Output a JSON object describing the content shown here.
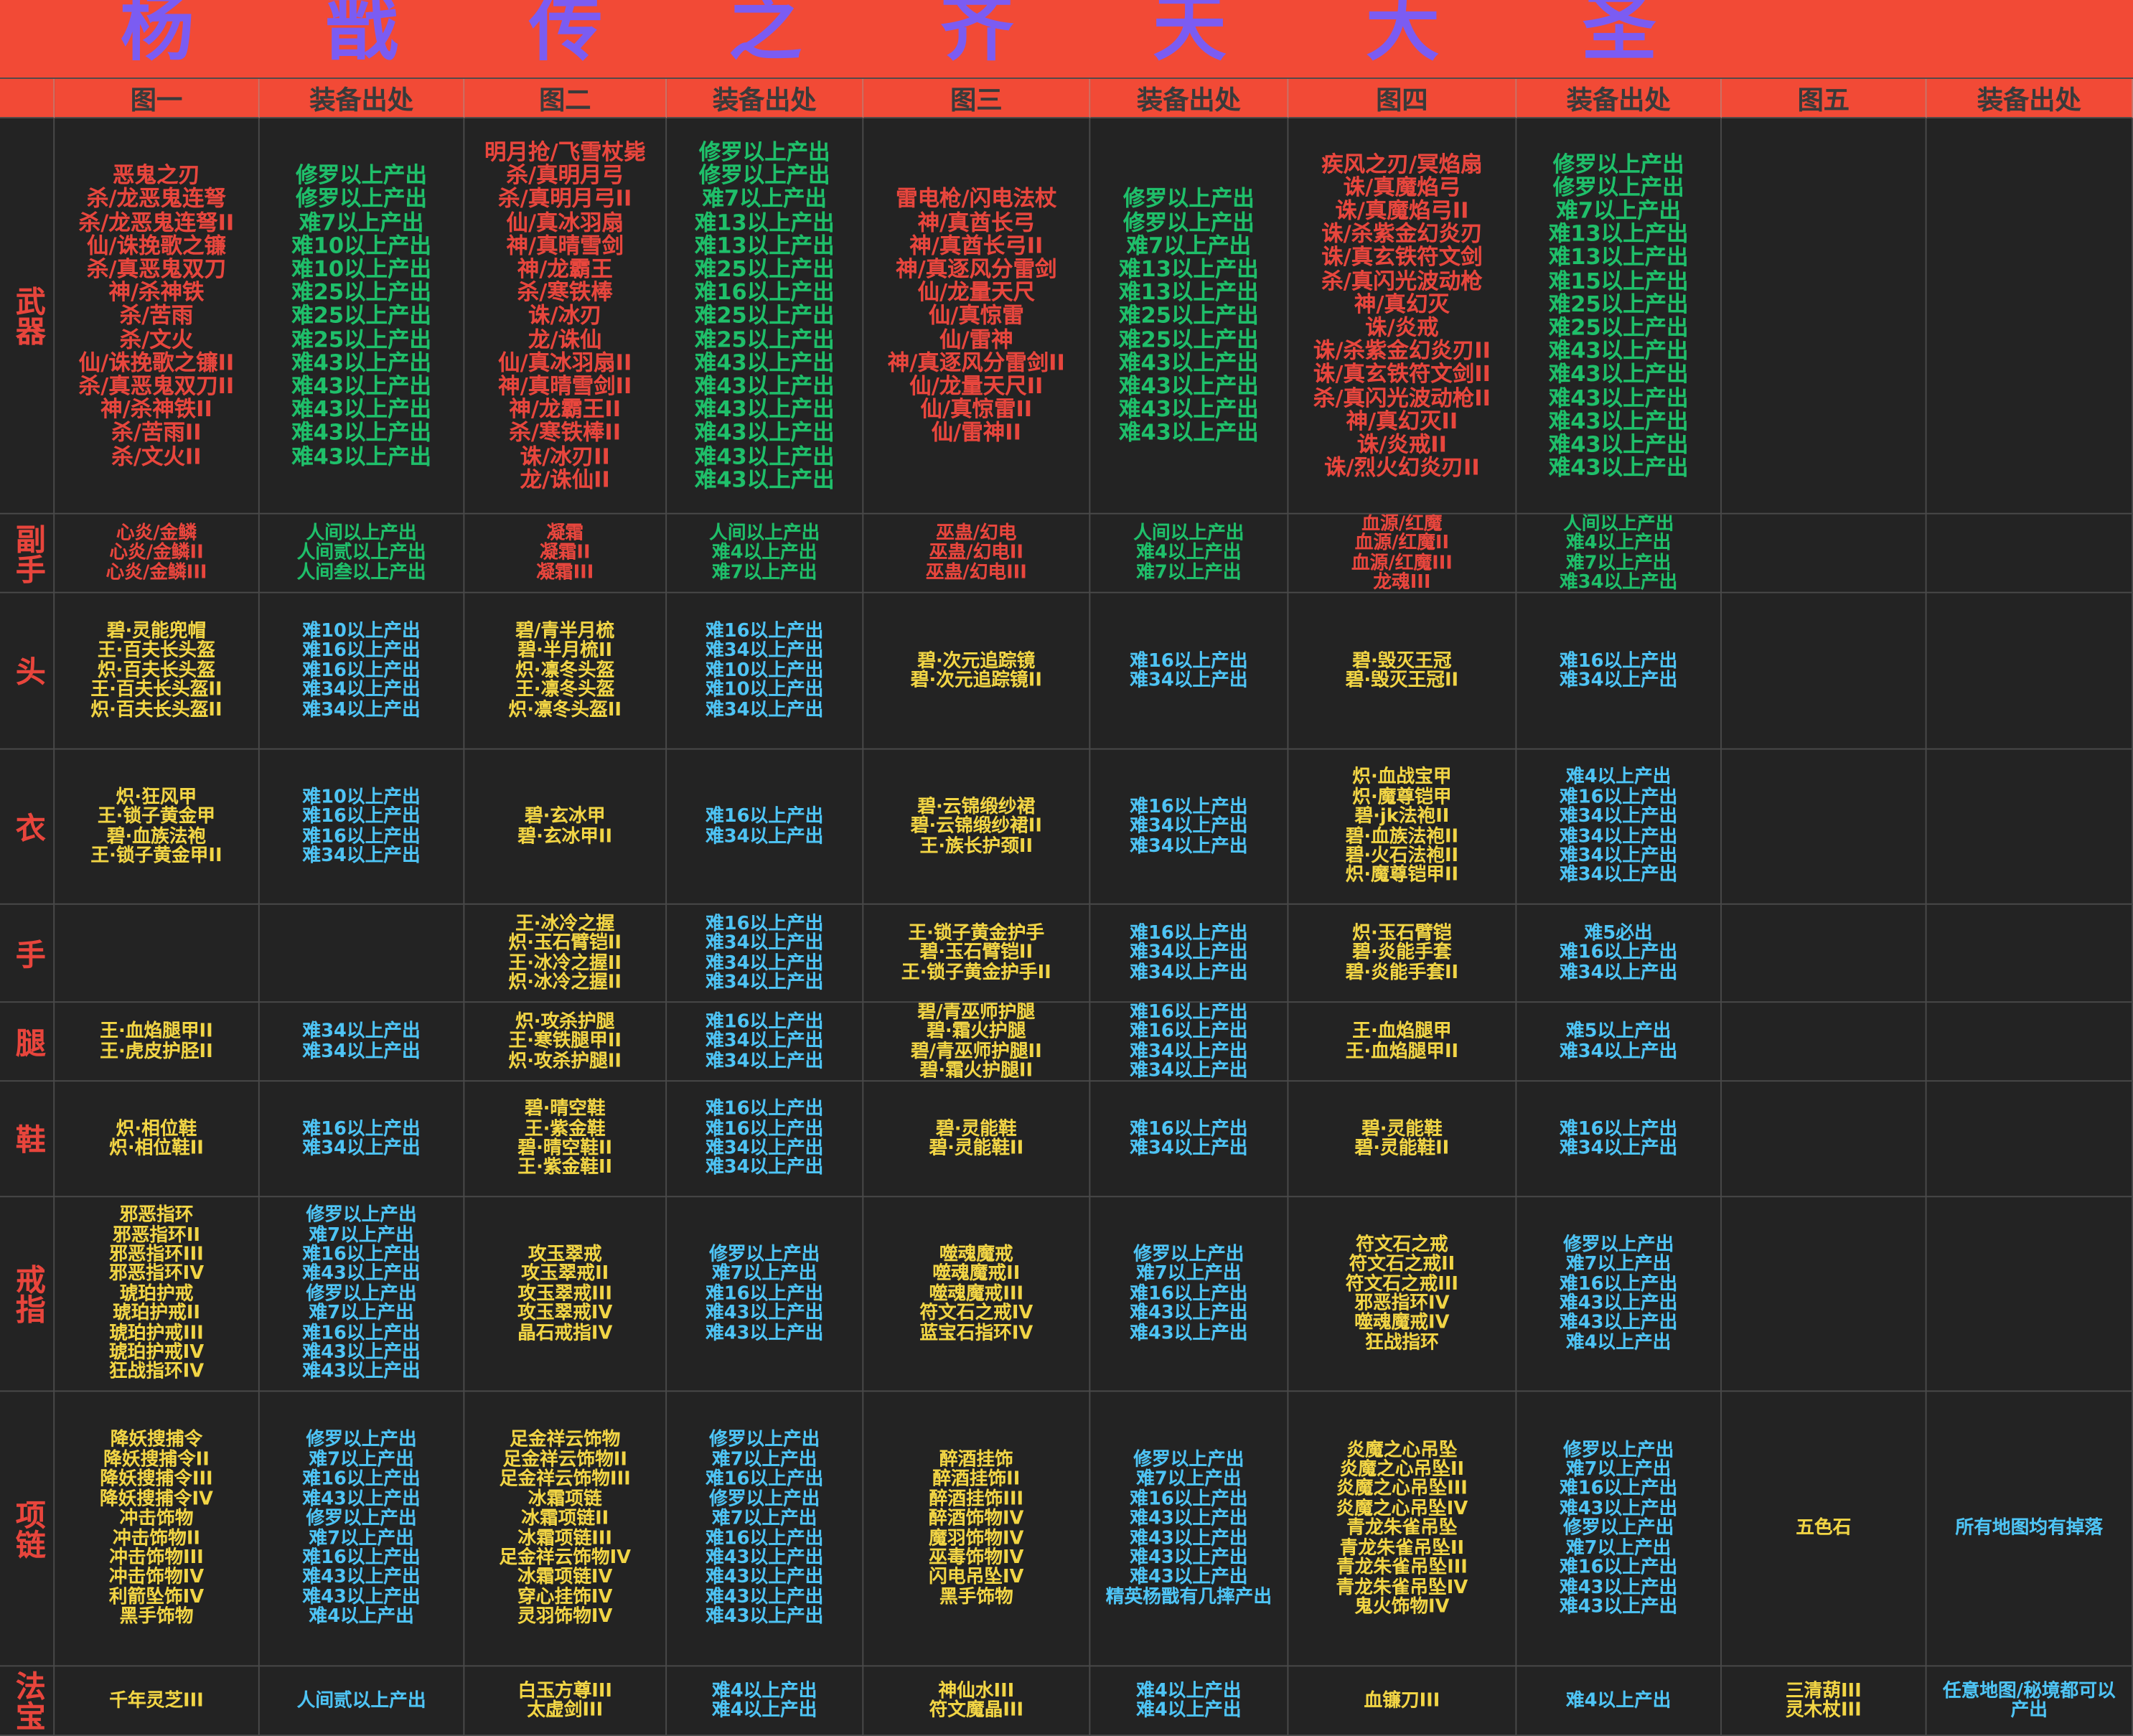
{
  "title": [
    "杨",
    "戬",
    "传",
    "之",
    "齐",
    "天",
    "大",
    "圣"
  ],
  "header": [
    "图一",
    "装备出处",
    "图二",
    "装备出处",
    "图三",
    "装备出处",
    "图四",
    "装备出处",
    "图五",
    "装备出处"
  ],
  "rows": [
    {
      "label": "武器",
      "cells": [
        [
          "恶鬼之刃",
          "杀/龙恶鬼连弩",
          "杀/龙恶鬼连弩II",
          "仙/诛挽歌之镰",
          "杀/真恶鬼双刀",
          "神/杀神铁",
          "杀/苦雨",
          "杀/文火",
          "仙/诛挽歌之镰II",
          "杀/真恶鬼双刀II",
          "神/杀神铁II",
          "杀/苦雨II",
          "杀/文火II"
        ],
        [
          "修罗以上产出",
          "修罗以上产出",
          "难7以上产出",
          "难10以上产出",
          "难10以上产出",
          "难25以上产出",
          "难25以上产出",
          "难25以上产出",
          "难43以上产出",
          "难43以上产出",
          "难43以上产出",
          "难43以上产出",
          "难43以上产出"
        ],
        [
          "明月抢/飞雪杖毙",
          "杀/真明月弓",
          "杀/真明月弓II",
          "仙/真冰羽扇",
          "神/真晴雪剑",
          "神/龙霸王",
          "杀/寒铁棒",
          "诛/冰刃",
          "龙/诛仙",
          "仙/真冰羽扇II",
          "神/真晴雪剑II",
          "神/龙霸王II",
          "杀/寒铁棒II",
          "诛/冰刃II",
          "龙/诛仙II"
        ],
        [
          "修罗以上产出",
          "修罗以上产出",
          "难7以上产出",
          "难13以上产出",
          "难13以上产出",
          "难25以上产出",
          "难16以上产出",
          "难25以上产出",
          "难25以上产出",
          "难43以上产出",
          "难43以上产出",
          "难43以上产出",
          "难43以上产出",
          "难43以上产出",
          "难43以上产出"
        ],
        [
          "雷电枪/闪电法杖",
          "神/真酋长弓",
          "神/真酋长弓II",
          "神/真逐风分雷剑",
          "仙/龙量天尺",
          "仙/真惊雷",
          "仙/雷神",
          "神/真逐风分雷剑II",
          "仙/龙量天尺II",
          "仙/真惊雷II",
          "仙/雷神II"
        ],
        [
          "修罗以上产出",
          "修罗以上产出",
          "难7以上产出",
          "难13以上产出",
          "难13以上产出",
          "难25以上产出",
          "难25以上产出",
          "难43以上产出",
          "难43以上产出",
          "难43以上产出",
          "难43以上产出"
        ],
        [
          "疾风之刃/冥焰扇",
          "诛/真魔焰弓",
          "诛/真魔焰弓II",
          "诛/杀紫金幻炎刃",
          "诛/真玄铁符文剑",
          "杀/真闪光波动枪",
          "神/真幻灭",
          "诛/炎戒",
          "诛/杀紫金幻炎刃II",
          "诛/真玄铁符文剑II",
          "杀/真闪光波动枪II",
          "神/真幻灭II",
          "诛/炎戒II",
          "诛/烈火幻炎刃II"
        ],
        [
          "修罗以上产出",
          "修罗以上产出",
          "难7以上产出",
          "难13以上产出",
          "难13以上产出",
          "难15以上产出",
          "难25以上产出",
          "难25以上产出",
          "难43以上产出",
          "难43以上产出",
          "难43以上产出",
          "难43以上产出",
          "难43以上产出",
          "难43以上产出"
        ],
        [],
        []
      ]
    },
    {
      "label": "副手",
      "cells": [
        [
          "心炎/金鳞",
          "心炎/金鳞II",
          "心炎/金鳞III"
        ],
        [
          "人间以上产出",
          "人间贰以上产出",
          "人间叁以上产出"
        ],
        [
          "凝霜",
          "凝霜II",
          "凝霜III"
        ],
        [
          "人间以上产出",
          "难4以上产出",
          "难7以上产出"
        ],
        [
          "巫蛊/幻电",
          "巫蛊/幻电II",
          "巫蛊/幻电III"
        ],
        [
          "人间以上产出",
          "难4以上产出",
          "难7以上产出"
        ],
        [
          "血源/红魔",
          "血源/红魔II",
          "血源/红魔III",
          "龙魂III"
        ],
        [
          "人间以上产出",
          "难4以上产出",
          "难7以上产出",
          "难34以上产出"
        ],
        [],
        []
      ]
    },
    {
      "label": "头",
      "cells": [
        [
          "碧·灵能兜帽",
          "王·百夫长头盔",
          "炽·百夫长头盔",
          "王·百夫长头盔II",
          "炽·百夫长头盔II"
        ],
        [
          "难10以上产出",
          "难16以上产出",
          "难16以上产出",
          "难34以上产出",
          "难34以上产出"
        ],
        [
          "碧/青半月梳",
          "碧·半月梳II",
          "炽·凛冬头盔",
          "王·凛冬头盔",
          "炽·凛冬头盔II"
        ],
        [
          "难16以上产出",
          "难34以上产出",
          "难10以上产出",
          "难10以上产出",
          "难34以上产出"
        ],
        [
          "碧·次元追踪镜",
          "碧·次元追踪镜II"
        ],
        [
          "难16以上产出",
          "难34以上产出"
        ],
        [
          "碧·毁灭王冠",
          "碧·毁灭王冠II"
        ],
        [
          "难16以上产出",
          "难34以上产出"
        ],
        [],
        []
      ]
    },
    {
      "label": "衣",
      "cells": [
        [
          "炽·狂风甲",
          "王·锁子黄金甲",
          "碧·血族法袍",
          "王·锁子黄金甲II"
        ],
        [
          "难10以上产出",
          "难16以上产出",
          "难16以上产出",
          "难34以上产出"
        ],
        [
          "碧·玄冰甲",
          "碧·玄冰甲II"
        ],
        [
          "难16以上产出",
          "难34以上产出"
        ],
        [
          "碧·云锦缎纱裙",
          "碧·云锦缎纱裙II",
          "王·族长护颈II"
        ],
        [
          "难16以上产出",
          "难34以上产出",
          "难34以上产出"
        ],
        [
          "炽·血战宝甲",
          "炽·魔尊铠甲",
          "碧·jk法袍II",
          "碧·血族法袍II",
          "碧·火石法袍II",
          "炽·魔尊铠甲II"
        ],
        [
          "难4以上产出",
          "难16以上产出",
          "难34以上产出",
          "难34以上产出",
          "难34以上产出",
          "难34以上产出"
        ],
        [],
        []
      ]
    },
    {
      "label": "手",
      "cells": [
        [],
        [],
        [
          "王·冰冷之握",
          "炽·玉石臂铠II",
          "王·冰冷之握II",
          "炽·冰冷之握II"
        ],
        [
          "难16以上产出",
          "难34以上产出",
          "难34以上产出",
          "难34以上产出"
        ],
        [
          "王·锁子黄金护手",
          "碧·玉石臂铠II",
          "王·锁子黄金护手II"
        ],
        [
          "难16以上产出",
          "难34以上产出",
          "难34以上产出"
        ],
        [
          "炽·玉石臂铠",
          "碧·炎能手套",
          "碧·炎能手套II"
        ],
        [
          "难5必出",
          "难16以上产出",
          "难34以上产出"
        ],
        [],
        []
      ]
    },
    {
      "label": "腿",
      "cells": [
        [
          "王·血焰腿甲II",
          "王·虎皮护胫II"
        ],
        [
          "难34以上产出",
          "难34以上产出"
        ],
        [
          "炽·攻杀护腿",
          "王·寒铁腿甲II",
          "炽·攻杀护腿II"
        ],
        [
          "难16以上产出",
          "难34以上产出",
          "难34以上产出"
        ],
        [
          "碧/青巫师护腿",
          "碧·霜火护腿",
          "碧/青巫师护腿II",
          "碧·霜火护腿II"
        ],
        [
          "难16以上产出",
          "难16以上产出",
          "难34以上产出",
          "难34以上产出"
        ],
        [
          "王·血焰腿甲",
          "王·血焰腿甲II"
        ],
        [
          "难5以上产出",
          "难34以上产出"
        ],
        [],
        []
      ]
    },
    {
      "label": "鞋",
      "cells": [
        [
          "炽·相位鞋",
          "炽·相位鞋II"
        ],
        [
          "难16以上产出",
          "难34以上产出"
        ],
        [
          "碧·晴空鞋",
          "王·紫金鞋",
          "碧·晴空鞋II",
          "王·紫金鞋II"
        ],
        [
          "难16以上产出",
          "难16以上产出",
          "难34以上产出",
          "难34以上产出"
        ],
        [
          "碧·灵能鞋",
          "碧·灵能鞋II"
        ],
        [
          "难16以上产出",
          "难34以上产出"
        ],
        [
          "碧·灵能鞋",
          "碧·灵能鞋II"
        ],
        [
          "难16以上产出",
          "难34以上产出"
        ],
        [],
        []
      ]
    },
    {
      "label": "戒指",
      "cells": [
        [
          "邪恶指环",
          "邪恶指环II",
          "邪恶指环III",
          "邪恶指环IV",
          "琥珀护戒",
          "琥珀护戒II",
          "琥珀护戒III",
          "琥珀护戒IV",
          "狂战指环IV"
        ],
        [
          "修罗以上产出",
          "难7以上产出",
          "难16以上产出",
          "难43以上产出",
          "修罗以上产出",
          "难7以上产出",
          "难16以上产出",
          "难43以上产出",
          "难43以上产出"
        ],
        [
          "攻玉翠戒",
          "攻玉翠戒II",
          "攻玉翠戒III",
          "攻玉翠戒IV",
          "晶石戒指IV"
        ],
        [
          "修罗以上产出",
          "难7以上产出",
          "难16以上产出",
          "难43以上产出",
          "难43以上产出"
        ],
        [
          "噬魂魔戒",
          "噬魂魔戒II",
          "噬魂魔戒III",
          "符文石之戒IV",
          "蓝宝石指环IV"
        ],
        [
          "修罗以上产出",
          "难7以上产出",
          "难16以上产出",
          "难43以上产出",
          "难43以上产出"
        ],
        [
          "符文石之戒",
          "符文石之戒II",
          "符文石之戒III",
          "邪恶指环IV",
          "噬魂魔戒IV",
          "狂战指环"
        ],
        [
          "修罗以上产出",
          "难7以上产出",
          "难16以上产出",
          "难43以上产出",
          "难43以上产出",
          "难4以上产出"
        ],
        [],
        []
      ]
    },
    {
      "label": "项链",
      "cells": [
        [
          "降妖搜捕令",
          "降妖搜捕令II",
          "降妖搜捕令III",
          "降妖搜捕令IV",
          "冲击饰物",
          "冲击饰物II",
          "冲击饰物III",
          "冲击饰物IV",
          "利箭坠饰IV",
          "黑手饰物"
        ],
        [
          "修罗以上产出",
          "难7以上产出",
          "难16以上产出",
          "难43以上产出",
          "修罗以上产出",
          "难7以上产出",
          "难16以上产出",
          "难43以上产出",
          "难43以上产出",
          "难4以上产出"
        ],
        [
          "足金祥云饰物",
          "足金祥云饰物II",
          "足金祥云饰物III",
          "冰霜项链",
          "冰霜项链II",
          "冰霜项链III",
          "足金祥云饰物IV",
          "冰霜项链IV",
          "穿心挂饰IV",
          "灵羽饰物IV"
        ],
        [
          "修罗以上产出",
          "难7以上产出",
          "难16以上产出",
          "修罗以上产出",
          "难7以上产出",
          "难16以上产出",
          "难43以上产出",
          "难43以上产出",
          "难43以上产出",
          "难43以上产出"
        ],
        [
          "醉酒挂饰",
          "醉酒挂饰II",
          "醉酒挂饰III",
          "醉酒饰物IV",
          "魔羽饰物IV",
          "巫毒饰物IV",
          "闪电吊坠IV",
          "黑手饰物"
        ],
        [
          "修罗以上产出",
          "难7以上产出",
          "难16以上产出",
          "难43以上产出",
          "难43以上产出",
          "难43以上产出",
          "难43以上产出",
          "精英杨戬有几摔产出"
        ],
        [
          "炎魔之心吊坠",
          "炎魔之心吊坠II",
          "炎魔之心吊坠III",
          "炎魔之心吊坠IV",
          "青龙朱雀吊坠",
          "青龙朱雀吊坠II",
          "青龙朱雀吊坠III",
          "青龙朱雀吊坠IV",
          "鬼火饰物IV"
        ],
        [
          "修罗以上产出",
          "难7以上产出",
          "难16以上产出",
          "难43以上产出",
          "修罗以上产出",
          "难7以上产出",
          "难16以上产出",
          "难43以上产出",
          "难43以上产出"
        ],
        [
          "五色石"
        ],
        [
          "所有地图均有掉落"
        ]
      ]
    },
    {
      "label": "法宝",
      "cells": [
        [
          "千年灵芝III"
        ],
        [
          "人间贰以上产出"
        ],
        [
          "白玉方尊III",
          "太虚剑III"
        ],
        [
          "难4以上产出",
          "难4以上产出"
        ],
        [
          "神仙水III",
          "符文魔晶III"
        ],
        [
          "难4以上产出",
          "难4以上产出"
        ],
        [
          "血镰刀III"
        ],
        [
          "难4以上产出"
        ],
        [
          "三清葫III",
          "灵木杖III"
        ],
        [
          "任意地图/秘境都可以",
          "产出"
        ]
      ]
    }
  ]
}
